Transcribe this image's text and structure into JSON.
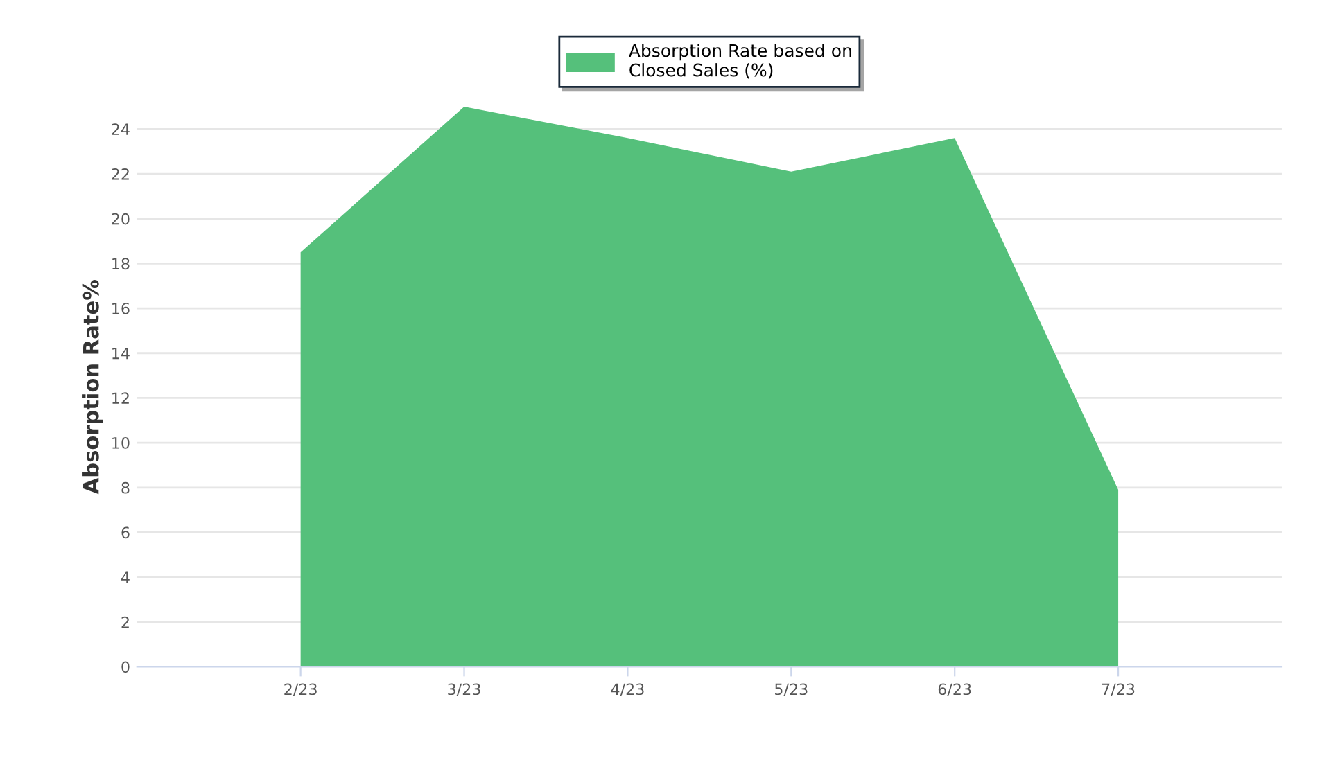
{
  "chart_data": {
    "type": "area",
    "ylabel": "Absorption Rate%",
    "categories": [
      "2/23",
      "3/23",
      "4/23",
      "5/23",
      "6/23",
      "7/23"
    ],
    "series": [
      {
        "name": "Absorption Rate based on Closed Sales (%)",
        "color": "#55c07b",
        "values": [
          18.5,
          25,
          23.6,
          22.1,
          23.6,
          7.9
        ]
      }
    ],
    "ylim": [
      0,
      25
    ],
    "yticks": [
      0,
      2,
      4,
      6,
      8,
      10,
      12,
      14,
      16,
      18,
      20,
      22,
      24
    ],
    "grid": "y",
    "legend": "top"
  }
}
